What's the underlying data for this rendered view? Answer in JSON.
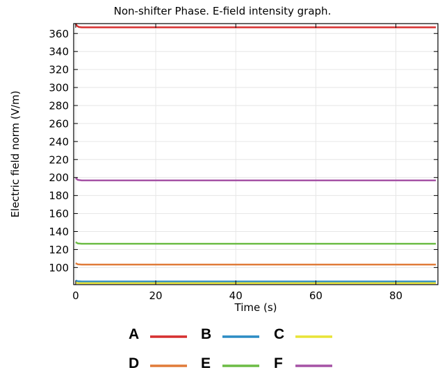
{
  "chart_data": {
    "type": "line",
    "title": "Non-shifter Phase. E-field intensity graph.",
    "xlabel": "Time (s)",
    "ylabel": "Electric field norm (V/m)",
    "xlim": [
      -0.5,
      90.5
    ],
    "ylim": [
      81,
      371
    ],
    "xticks": [
      0,
      20,
      40,
      60,
      80
    ],
    "yticks": [
      100,
      120,
      140,
      160,
      180,
      200,
      220,
      240,
      260,
      280,
      300,
      320,
      340,
      360
    ],
    "grid": true,
    "legend_position": "bottom",
    "series": [
      {
        "name": "A",
        "color": "#d62f2f",
        "x": [
          0,
          0.3,
          0.8,
          1.5,
          90
        ],
        "values": [
          371,
          368.5,
          367.2,
          366.8,
          366.8
        ]
      },
      {
        "name": "B",
        "color": "#2b8cc4",
        "x": [
          0,
          0.5,
          1.5,
          90
        ],
        "values": [
          85.5,
          84.8,
          84.5,
          84.5
        ]
      },
      {
        "name": "C",
        "color": "#e8e337",
        "x": [
          0,
          0.5,
          1.5,
          90
        ],
        "values": [
          83.2,
          82.8,
          82.6,
          82.6
        ]
      },
      {
        "name": "D",
        "color": "#e07b39",
        "x": [
          0,
          0.5,
          1.5,
          90
        ],
        "values": [
          104.8,
          103.6,
          103.3,
          103.3
        ]
      },
      {
        "name": "E",
        "color": "#6cbc45",
        "x": [
          0,
          0.5,
          1.5,
          90
        ],
        "values": [
          128.2,
          126.8,
          126.4,
          126.4
        ]
      },
      {
        "name": "F",
        "color": "#a552a5",
        "x": [
          0,
          0.5,
          1.5,
          90
        ],
        "values": [
          199.5,
          197.4,
          196.8,
          196.8
        ]
      }
    ]
  }
}
